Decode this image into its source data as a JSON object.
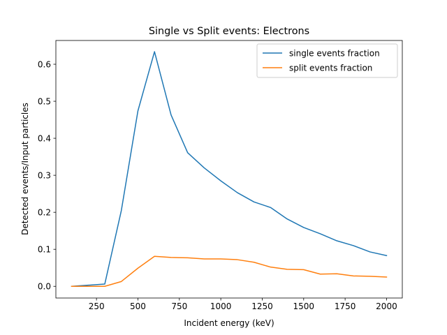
{
  "chart_data": {
    "type": "line",
    "title": "Single vs Split events: Electrons",
    "xlabel": "Incident energy (keV)",
    "ylabel": "Detected events/Input particles",
    "xlim": [
      5,
      2095
    ],
    "ylim": [
      -0.0316,
      0.6642
    ],
    "xticks": [
      250,
      500,
      750,
      1000,
      1250,
      1500,
      1750,
      2000
    ],
    "yticks": [
      0.0,
      0.1,
      0.2,
      0.3,
      0.4,
      0.5,
      0.6
    ],
    "x": [
      100,
      200,
      300,
      400,
      500,
      600,
      700,
      800,
      900,
      1000,
      1100,
      1200,
      1300,
      1400,
      1500,
      1600,
      1700,
      1800,
      1900,
      2000
    ],
    "series": [
      {
        "name": "single events fraction",
        "color": "#1f77b4",
        "values": [
          0.0,
          0.003,
          0.006,
          0.205,
          0.474,
          0.634,
          0.463,
          0.361,
          0.32,
          0.285,
          0.253,
          0.228,
          0.213,
          0.182,
          0.159,
          0.142,
          0.123,
          0.11,
          0.093,
          0.083
        ]
      },
      {
        "name": "split events fraction",
        "color": "#ff7f0e",
        "values": [
          0.0,
          0.0,
          0.0,
          0.013,
          0.049,
          0.081,
          0.078,
          0.077,
          0.074,
          0.074,
          0.072,
          0.065,
          0.052,
          0.046,
          0.045,
          0.033,
          0.034,
          0.028,
          0.027,
          0.025
        ]
      }
    ],
    "legend_position": "top-right",
    "grid": false
  }
}
